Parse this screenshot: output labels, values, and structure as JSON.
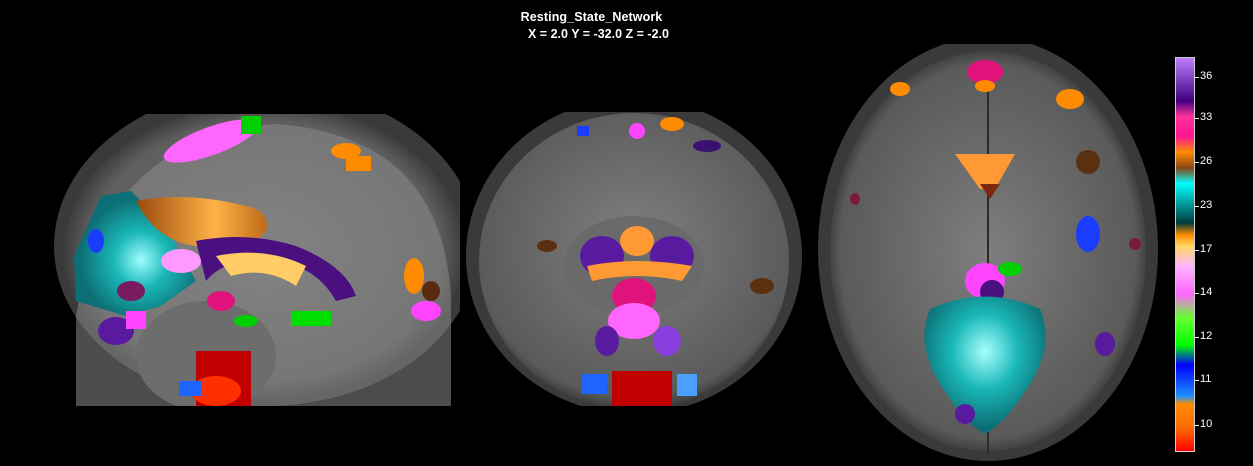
{
  "figure": {
    "title": "Resting_State_Network",
    "coordinates": "X = 2.0 Y = -32.0 Z = -2.0"
  },
  "views": [
    {
      "name": "sagittal"
    },
    {
      "name": "coronal"
    },
    {
      "name": "axial"
    }
  ],
  "colorbar": {
    "ticks": [
      "36",
      "33",
      "26",
      "23",
      "17",
      "14",
      "12",
      "11",
      "10"
    ],
    "colors": [
      "#ff0000",
      "#ff8c00",
      "#1e90ff",
      "#0000ff",
      "#00ff00",
      "#ff66ff",
      "#ff99ff",
      "#ffb347",
      "#00ffff",
      "#008080",
      "#8b4513",
      "#ff8c00",
      "#ff1493",
      "#800080",
      "#8a2be2"
    ]
  }
}
